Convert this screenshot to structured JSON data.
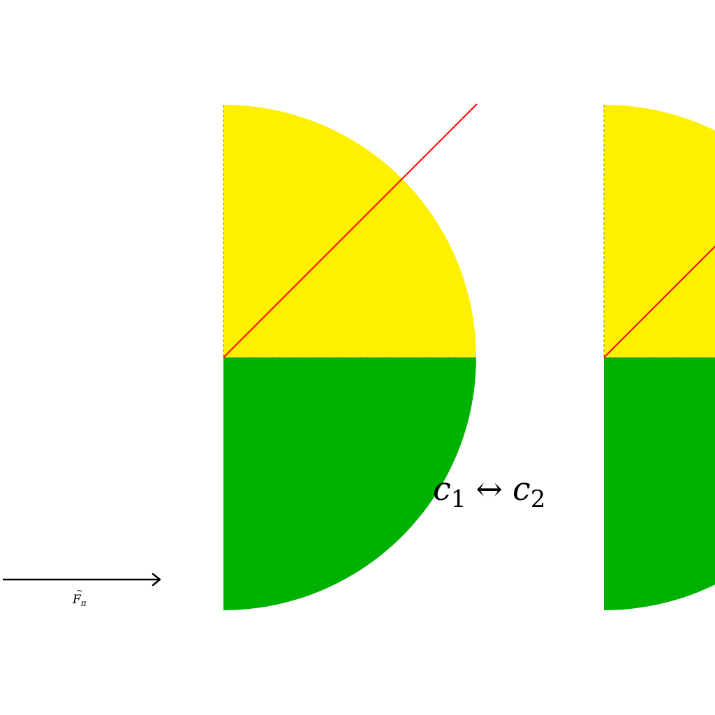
{
  "colors": {
    "upper_half": "#fff000",
    "lower_half": "#00b200",
    "diagonal": "#ff0000",
    "dashed_edge": "#7f7f7f",
    "arrow": "#000000",
    "text": "#000000"
  },
  "swap_label": {
    "left_symbol": "c",
    "left_index": "1",
    "relation": "↔",
    "right_symbol": "c",
    "right_index": "2"
  },
  "arrow_label": {
    "symbol": "F",
    "accent": "~",
    "subscript": "π"
  }
}
